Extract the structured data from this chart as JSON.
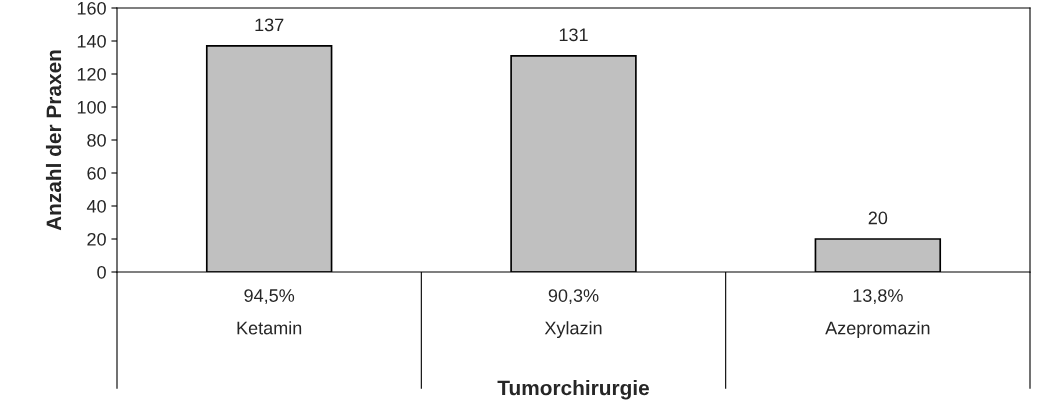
{
  "chart_data": {
    "type": "bar",
    "categories": [
      "94,5%\nKetamin",
      "90,3%\nXylazin",
      "13,8%\nAzepromazin"
    ],
    "values": [
      137,
      131,
      20
    ],
    "color": "#c0c0c0",
    "xlabel": "Tumorchirurgie",
    "ylabel": "Anzahl der Praxen",
    "ylim": [
      0,
      160
    ],
    "yticks": [
      0,
      20,
      40,
      60,
      80,
      100,
      120,
      140,
      160
    ],
    "data_labels": true,
    "grid": false,
    "legend": false
  }
}
